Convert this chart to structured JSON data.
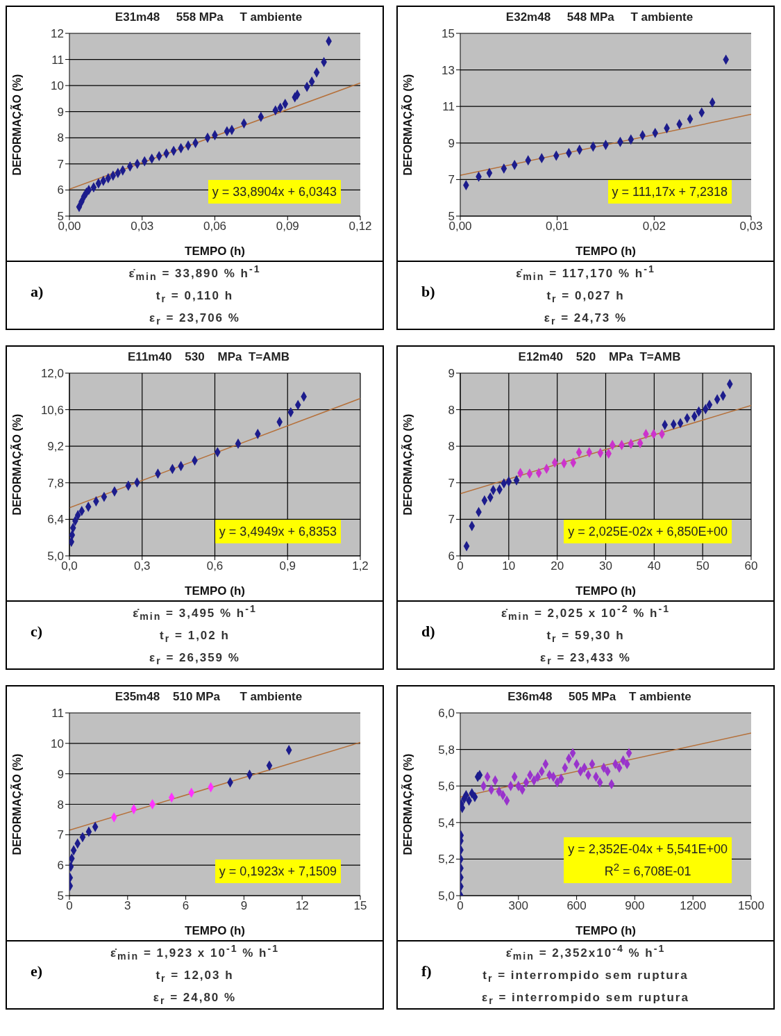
{
  "chart_data": [
    {
      "type": "scatter",
      "title": "E31m48     558 MPa     T ambiente",
      "xlabel": "TEMPO (h)",
      "ylabel": "DEFORMAÇÃO (%)",
      "marker": "diamond",
      "grid": "y",
      "xlim": [
        0,
        0.12
      ],
      "xticks": [
        {
          "value": 0,
          "label": "0,00"
        },
        {
          "value": 0.03,
          "label": "0,03"
        },
        {
          "value": 0.06,
          "label": "0,06"
        },
        {
          "value": 0.09,
          "label": "0,09"
        },
        {
          "value": 0.12,
          "label": "0,12"
        }
      ],
      "ylim": [
        5,
        12
      ],
      "yticks": [
        5,
        6,
        7,
        8,
        9,
        10,
        11,
        12
      ],
      "series": [
        {
          "color": "#1c1c8c",
          "x": [
            0.004,
            0.005,
            0.006,
            0.007,
            0.008,
            0.01,
            0.012,
            0.014,
            0.016,
            0.018,
            0.02,
            0.022,
            0.025,
            0.028,
            0.031,
            0.034,
            0.037,
            0.04,
            0.043,
            0.046,
            0.049,
            0.052,
            0.057,
            0.06,
            0.065,
            0.067,
            0.072,
            0.079,
            0.085,
            0.087,
            0.089,
            0.093,
            0.094,
            0.098,
            0.1,
            0.102,
            0.105,
            0.107
          ],
          "values": [
            5.35,
            5.55,
            5.75,
            5.9,
            6.0,
            6.1,
            6.25,
            6.35,
            6.45,
            6.55,
            6.65,
            6.75,
            6.9,
            7.0,
            7.1,
            7.2,
            7.3,
            7.4,
            7.5,
            7.6,
            7.7,
            7.8,
            8.0,
            8.1,
            8.25,
            8.3,
            8.55,
            8.8,
            9.05,
            9.15,
            9.3,
            9.55,
            9.65,
            9.95,
            10.15,
            10.5,
            10.9,
            11.7
          ]
        },
        {
          "type": "line",
          "marker": "none",
          "color": "#b5703a",
          "x": [
            0,
            0.12
          ],
          "values": [
            6.03,
            10.1
          ]
        }
      ],
      "annotations": [
        "y = 33,8904x + 6,0343",
        "ε̇$_{min}$ = 33,890 % h$^{-1}$",
        "t$_{r}$ = 0,110 h",
        "ε$_{r}$ = 23,706 %",
        "a)"
      ]
    },
    {
      "type": "scatter",
      "title": "E32m48     548 MPa     T ambiente",
      "xlabel": "TEMPO (h)",
      "ylabel": "DEFORMAÇÃO (%)",
      "marker": "diamond",
      "grid": "y",
      "xlim": [
        0,
        0.03
      ],
      "xticks": [
        {
          "value": 0,
          "label": "0,00"
        },
        {
          "value": 0.01,
          "label": "0,01"
        },
        {
          "value": 0.02,
          "label": "0,02"
        },
        {
          "value": 0.03,
          "label": "0,03"
        }
      ],
      "ylim": [
        5,
        15
      ],
      "yticks": [
        5,
        7,
        9,
        11,
        13,
        15
      ],
      "series": [
        {
          "color": "#1c1c8c",
          "x": [
            0.0006,
            0.0019,
            0.003,
            0.0045,
            0.0056,
            0.007,
            0.0084,
            0.0099,
            0.0112,
            0.0123,
            0.0137,
            0.015,
            0.0165,
            0.0176,
            0.0188,
            0.0201,
            0.0213,
            0.0226,
            0.0237,
            0.0249,
            0.026,
            0.0274
          ],
          "values": [
            6.69,
            7.16,
            7.36,
            7.6,
            7.8,
            8.05,
            8.17,
            8.31,
            8.45,
            8.63,
            8.8,
            8.9,
            9.06,
            9.19,
            9.42,
            9.55,
            9.81,
            10.03,
            10.31,
            10.67,
            11.22,
            13.56
          ]
        },
        {
          "type": "line",
          "marker": "none",
          "color": "#b5703a",
          "x": [
            0,
            0.03
          ],
          "values": [
            7.23,
            10.57
          ]
        }
      ],
      "annotations": [
        "y = 111,17x + 7,2318",
        "ε̇$_{min}$ = 117,170 % h$^{-1}$",
        "t$_{r}$ = 0,027 h",
        "ε$_{r}$ = 24,73 %",
        "b)"
      ]
    },
    {
      "type": "scatter",
      "title": "E11m40    530    MPa  T=AMB",
      "xlabel": "TEMPO (h)",
      "ylabel": "DEFORMAÇÃO (%)",
      "marker": "diamond",
      "grid": true,
      "xlim": [
        0,
        1.2
      ],
      "xticks": [
        {
          "value": 0,
          "label": "0,0"
        },
        {
          "value": 0.3,
          "label": "0,3"
        },
        {
          "value": 0.6,
          "label": "0,6"
        },
        {
          "value": 0.9,
          "label": "0,9"
        },
        {
          "value": 1.2,
          "label": "1,2"
        }
      ],
      "ylim": [
        5,
        12
      ],
      "yticks": [
        {
          "value": 5,
          "label": "5,0"
        },
        {
          "value": 6.4,
          "label": "6,4"
        },
        {
          "value": 7.8,
          "label": "7,8"
        },
        {
          "value": 9.2,
          "label": "9,2"
        },
        {
          "value": 10.6,
          "label": "10,6"
        },
        {
          "value": 12,
          "label": "12,0"
        }
      ],
      "series": [
        {
          "color": "#1c1c8c",
          "x": [
            0.008,
            0.011,
            0.015,
            0.024,
            0.035,
            0.051,
            0.078,
            0.11,
            0.143,
            0.186,
            0.243,
            0.279,
            0.365,
            0.425,
            0.46,
            0.517,
            0.611,
            0.696,
            0.777,
            0.867,
            0.913,
            0.943,
            0.967
          ],
          "values": [
            5.54,
            5.8,
            6.07,
            6.34,
            6.56,
            6.72,
            6.88,
            7.09,
            7.26,
            7.47,
            7.69,
            7.81,
            8.15,
            8.33,
            8.44,
            8.65,
            8.97,
            9.3,
            9.67,
            10.13,
            10.5,
            10.78,
            11.1
          ]
        },
        {
          "type": "line",
          "marker": "none",
          "color": "#b5703a",
          "x": [
            0,
            1.2
          ],
          "values": [
            6.84,
            11.03
          ]
        }
      ],
      "annotations": [
        "y = 3,4949x + 6,8353",
        "ε̇$_{min}$ = 3,495 % h$^{-1}$",
        "t$_{r}$ = 1,02 h",
        "ε$_{r}$ = 26,359 %",
        "c)"
      ]
    },
    {
      "type": "scatter",
      "title": "E12m40    520    MPa  T=AMB",
      "xlabel": "TEMPO (h)",
      "ylabel": "DEFORMAÇÃO (%)",
      "marker": "diamond",
      "grid": true,
      "xlim": [
        0,
        60
      ],
      "xticks": [
        0,
        10,
        20,
        30,
        40,
        50,
        60
      ],
      "ylim": [
        6,
        9
      ],
      "yticks": [
        6,
        {
          "value": 6.6,
          "label": "7"
        },
        {
          "value": 7.2,
          "label": "7"
        },
        {
          "value": 7.8,
          "label": "8"
        },
        {
          "value": 8.4,
          "label": "8"
        },
        9
      ],
      "series": [
        {
          "color": "#1c1c8c",
          "x": [
            1.3,
            2.4,
            3.8,
            5.0,
            6.2,
            6.8,
            8.1,
            9.0,
            10.0,
            11.6,
            42.2,
            44,
            45.4,
            46.8,
            48.3,
            49.2,
            50.6,
            51.4,
            53,
            54.2,
            55.6
          ],
          "values": [
            6.16,
            6.49,
            6.72,
            6.91,
            6.96,
            7.08,
            7.09,
            7.19,
            7.22,
            7.24,
            8.15,
            8.16,
            8.18,
            8.26,
            8.29,
            8.37,
            8.41,
            8.48,
            8.57,
            8.63,
            8.82
          ]
        },
        {
          "color": "#cc33cc",
          "x": [
            12.4,
            14.3,
            16.2,
            17.8,
            19.5,
            21.4,
            23.3,
            24.5,
            26.6,
            28.9,
            30.6,
            31.4,
            33.3,
            35.2,
            37.1,
            38.3,
            39.9,
            41.6
          ],
          "values": [
            7.36,
            7.35,
            7.36,
            7.43,
            7.53,
            7.52,
            7.53,
            7.7,
            7.7,
            7.69,
            7.68,
            7.82,
            7.82,
            7.84,
            7.85,
            8.0,
            8.0,
            8.0
          ]
        },
        {
          "type": "line",
          "marker": "none",
          "color": "#b5703a",
          "x": [
            0,
            60
          ],
          "values": [
            7.02,
            8.47
          ]
        }
      ],
      "annotations": [
        "y = 2,025E-02x + 6,850E+00",
        "ε̇$_{min}$ = 2,025 x 10$^{-2}$ % h$^{-1}$",
        "t$_{r}$ = 59,30 h",
        "ε$_{r}$ = 23,433 %",
        "d)"
      ]
    },
    {
      "type": "scatter",
      "title": "E35m48    510 MPa      T ambiente",
      "xlabel": "TEMPO (h)",
      "ylabel": "DEFORMAÇÃO (%)",
      "marker": "diamond",
      "grid": "y",
      "xlim": [
        0,
        15
      ],
      "xticks": [
        0,
        3,
        6,
        9,
        12,
        15
      ],
      "ylim": [
        5,
        11
      ],
      "yticks": [
        5,
        6,
        7,
        8,
        9,
        10,
        11
      ],
      "series": [
        {
          "color": "#1c1c8c",
          "x": [
            0.03,
            0.03,
            0.07,
            0.12,
            0.22,
            0.42,
            0.68,
            1.0,
            1.33,
            8.29,
            9.29,
            10.31,
            11.32
          ],
          "values": [
            5.32,
            5.59,
            5.95,
            6.22,
            6.49,
            6.71,
            6.92,
            7.1,
            7.26,
            8.72,
            8.97,
            9.27,
            9.78
          ]
        },
        {
          "color": "#ff33ff",
          "x": [
            2.3,
            3.32,
            4.28,
            5.27,
            6.29,
            7.29
          ],
          "values": [
            7.57,
            7.84,
            8.0,
            8.22,
            8.38,
            8.56
          ]
        },
        {
          "type": "line",
          "marker": "none",
          "color": "#b5703a",
          "x": [
            0,
            15
          ],
          "values": [
            7.15,
            10.03
          ]
        }
      ],
      "annotations": [
        "y = 0,1923x + 7,1509",
        "ε̇$_{min}$ = 1,923 x 10$^{-1}$ % h$^{-1}$",
        "t$_{r}$ = 12,03 h",
        "ε$_{r}$ = 24,80 %",
        "e)"
      ]
    },
    {
      "type": "scatter",
      "title": "E36m48     505 MPa    T ambiente",
      "xlabel": "TEMPO (h)",
      "ylabel": "DEFORMAÇÃO (%)",
      "marker": "diamond",
      "grid": "y",
      "xlim": [
        0,
        1500
      ],
      "xticks": [
        0,
        300,
        600,
        900,
        1200,
        1500
      ],
      "ylim": [
        5,
        6
      ],
      "yticks": [
        {
          "value": 5,
          "label": "5,0"
        },
        {
          "value": 5.2,
          "label": "5,2"
        },
        {
          "value": 5.4,
          "label": "5,4"
        },
        {
          "value": 5.6,
          "label": "5,6"
        },
        {
          "value": 5.8,
          "label": "5,8"
        },
        {
          "value": 6,
          "label": "6,0"
        }
      ],
      "series": [
        {
          "color": "#1c1c8c",
          "x": [
            2,
            2,
            2,
            2,
            2,
            2,
            2,
            3,
            5,
            10,
            20,
            30,
            45,
            60,
            75,
            90,
            100
          ],
          "values": [
            5.0,
            5.05,
            5.1,
            5.15,
            5.2,
            5.25,
            5.3,
            5.33,
            5.5,
            5.48,
            5.53,
            5.55,
            5.52,
            5.56,
            5.54,
            5.65,
            5.66
          ]
        },
        {
          "color": "#9933cc",
          "x": [
            120,
            140,
            160,
            180,
            200,
            220,
            240,
            260,
            280,
            300,
            320,
            340,
            360,
            380,
            400,
            420,
            440,
            460,
            480,
            500,
            520,
            540,
            560,
            580,
            600,
            620,
            640,
            660,
            680,
            700,
            720,
            740,
            760,
            780,
            800,
            820,
            840,
            860,
            870
          ],
          "values": [
            5.6,
            5.65,
            5.58,
            5.63,
            5.57,
            5.55,
            5.52,
            5.6,
            5.65,
            5.6,
            5.58,
            5.62,
            5.66,
            5.63,
            5.65,
            5.68,
            5.72,
            5.66,
            5.65,
            5.62,
            5.64,
            5.7,
            5.75,
            5.78,
            5.72,
            5.68,
            5.7,
            5.66,
            5.72,
            5.65,
            5.62,
            5.7,
            5.68,
            5.61,
            5.72,
            5.7,
            5.74,
            5.72,
            5.78
          ]
        },
        {
          "type": "line",
          "marker": "none",
          "color": "#b5703a",
          "x": [
            0,
            1500
          ],
          "values": [
            5.54,
            5.89
          ]
        }
      ],
      "annotations": [
        "y = 2,352E-04x + 5,541E+00",
        "R$^{2}$ = 6,708E-01",
        "ε̇$_{min}$ = 2,352x10$^{-4}$ % h$^{-1}$",
        "t$_{r}$ = interrompido sem ruptura",
        "ε$_{r}$ = interrompido sem ruptura",
        "f)"
      ]
    }
  ]
}
